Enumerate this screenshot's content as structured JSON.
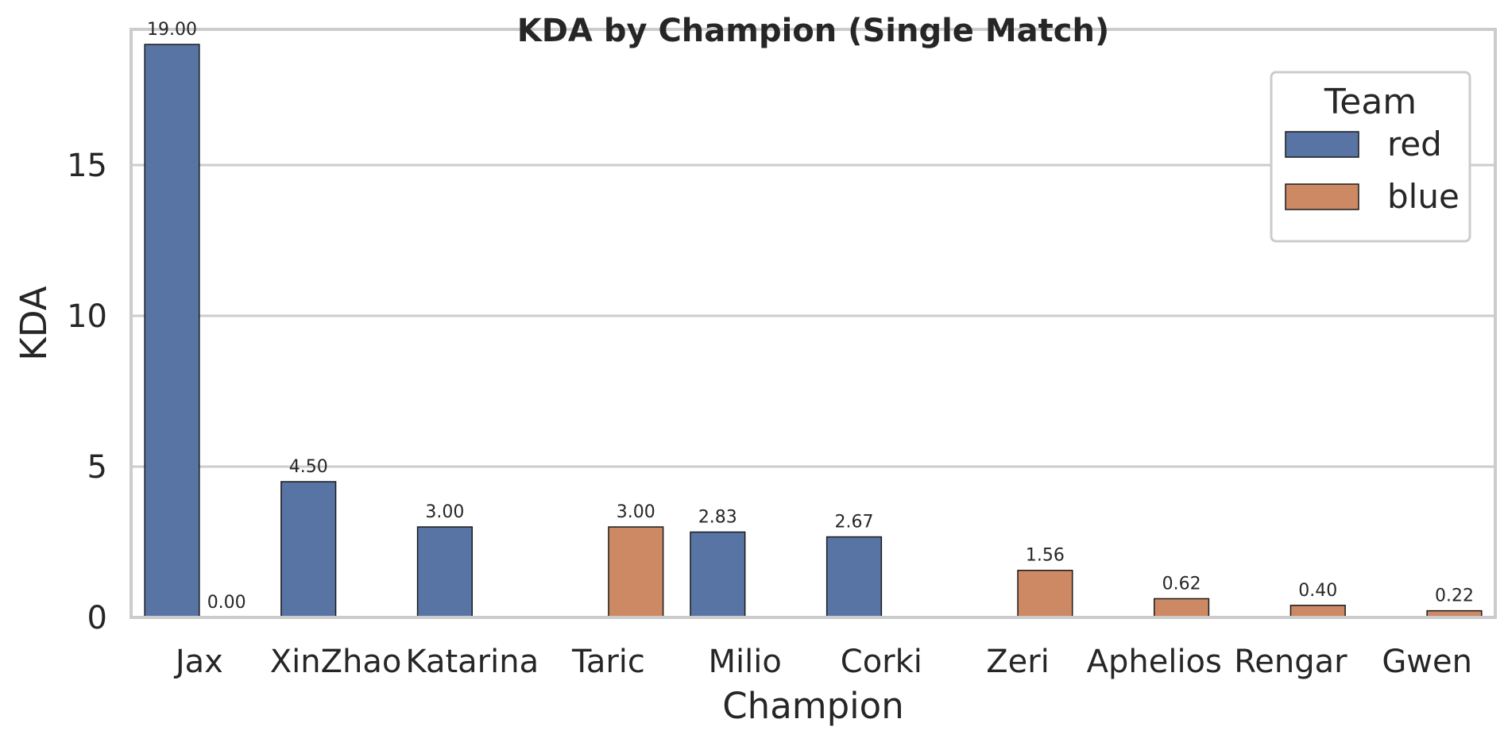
{
  "chart_data": {
    "type": "bar",
    "title": "KDA by Champion (Single Match)",
    "xlabel": "Champion",
    "ylabel": "KDA",
    "categories": [
      "Jax",
      "XinZhao",
      "Katarina",
      "Taric",
      "Milio",
      "Corki",
      "Zeri",
      "Aphelios",
      "Rengar",
      "Gwen"
    ],
    "series": [
      {
        "name": "red",
        "color": "#5874a5",
        "values": [
          19.0,
          4.5,
          3.0,
          null,
          2.83,
          2.67,
          null,
          null,
          null,
          null
        ],
        "labels": [
          "19.00",
          "4.50",
          "3.00",
          null,
          "2.83",
          "2.67",
          null,
          null,
          null,
          null
        ]
      },
      {
        "name": "blue",
        "color": "#cc8963",
        "values": [
          0.0,
          null,
          null,
          3.0,
          null,
          null,
          1.56,
          0.62,
          0.4,
          0.22
        ],
        "labels": [
          "0.00",
          null,
          null,
          "3.00",
          null,
          null,
          "1.56",
          "0.62",
          "0.40",
          "0.22"
        ]
      }
    ],
    "ylim": [
      0,
      19.5
    ],
    "yticks": [
      0,
      5,
      10,
      15
    ],
    "grid": true,
    "legend": {
      "title": "Team",
      "placement": "top-right"
    }
  }
}
